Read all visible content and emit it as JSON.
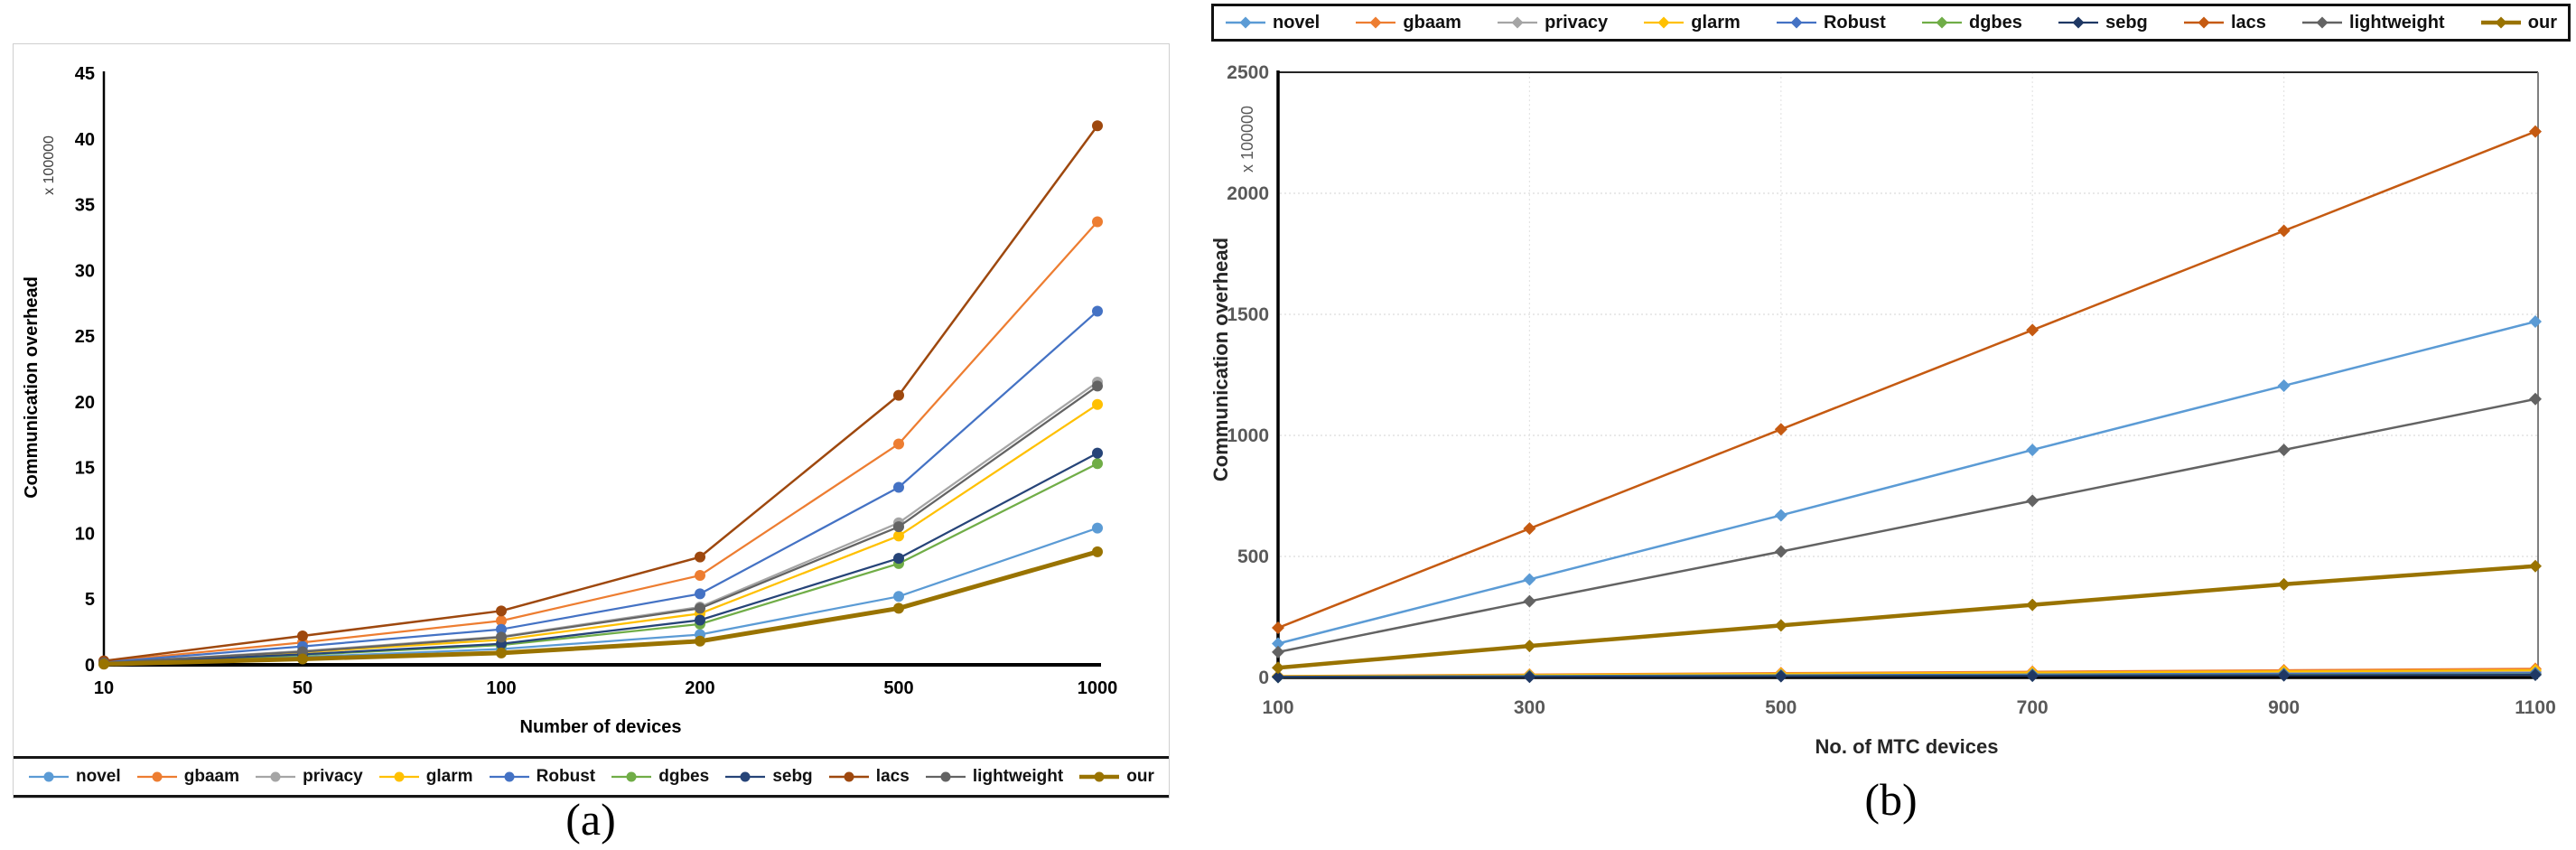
{
  "figure": {
    "caption_a": "(a)",
    "caption_b": "(b)"
  },
  "chart_data": [
    {
      "id": "a",
      "type": "line",
      "caption": "(a)",
      "xlabel": "Number of devices",
      "ylabel": "Communication overhead",
      "y_multiplier": "x 100000",
      "legend_position": "bottom",
      "marker": "circle",
      "grid": false,
      "ylim": [
        0,
        45
      ],
      "yticks": [
        0,
        5,
        10,
        15,
        20,
        25,
        30,
        35,
        40,
        45
      ],
      "categories": [
        "10",
        "50",
        "100",
        "200",
        "500",
        "1000"
      ],
      "series": [
        {
          "name": "novel",
          "color": "#5B9BD5",
          "width": 2.25,
          "values": [
            0.1,
            0.6,
            1.2,
            2.3,
            5.2,
            10.4
          ]
        },
        {
          "name": "gbaam",
          "color": "#ED7D31",
          "width": 2.25,
          "values": [
            0.25,
            1.7,
            3.35,
            6.8,
            16.8,
            33.7
          ]
        },
        {
          "name": "privacy",
          "color": "#A5A5A5",
          "width": 2.25,
          "values": [
            0.15,
            1.05,
            2.15,
            4.4,
            10.8,
            21.5
          ]
        },
        {
          "name": "glarm",
          "color": "#FFC000",
          "width": 2.25,
          "values": [
            0.15,
            0.95,
            1.9,
            3.9,
            9.8,
            19.8
          ]
        },
        {
          "name": "Robust",
          "color": "#4472C4",
          "width": 2.25,
          "values": [
            0.2,
            1.4,
            2.7,
            5.4,
            13.5,
            26.9
          ]
        },
        {
          "name": "dgbes",
          "color": "#70AD47",
          "width": 2.25,
          "values": [
            0.1,
            0.75,
            1.5,
            3.1,
            7.7,
            15.3
          ]
        },
        {
          "name": "sebg",
          "color": "#264478",
          "width": 2.25,
          "values": [
            0.12,
            0.8,
            1.6,
            3.4,
            8.1,
            16.1
          ]
        },
        {
          "name": "lacs",
          "color": "#9E480E",
          "width": 2.5,
          "values": [
            0.3,
            2.2,
            4.1,
            8.2,
            20.5,
            41.0
          ]
        },
        {
          "name": "lightweight",
          "color": "#636363",
          "width": 2.25,
          "values": [
            0.15,
            1.0,
            2.1,
            4.3,
            10.5,
            21.2
          ]
        },
        {
          "name": "our",
          "color": "#997300",
          "width": 5,
          "values": [
            0.05,
            0.45,
            0.9,
            1.8,
            4.3,
            8.6
          ]
        }
      ]
    },
    {
      "id": "b",
      "type": "line",
      "caption": "(b)",
      "xlabel": "No. of MTC devices",
      "ylabel": "Communication overhead",
      "y_multiplier": "x 100000",
      "legend_position": "top",
      "marker": "diamond",
      "grid": true,
      "ylim": [
        0,
        2500
      ],
      "yticks": [
        0,
        500,
        1000,
        1500,
        2000,
        2500
      ],
      "categories": [
        "100",
        "300",
        "500",
        "700",
        "900",
        "1100"
      ],
      "series": [
        {
          "name": "novel",
          "color": "#5B9BD5",
          "width": 2.5,
          "values": [
            140,
            405,
            670,
            940,
            1205,
            1470
          ]
        },
        {
          "name": "gbaam",
          "color": "#ED7D31",
          "width": 2.25,
          "values": [
            6,
            12,
            18,
            24,
            30,
            36
          ]
        },
        {
          "name": "privacy",
          "color": "#A5A5A5",
          "width": 2.25,
          "values": [
            4,
            8,
            12,
            16,
            20,
            24
          ]
        },
        {
          "name": "glarm",
          "color": "#FFC000",
          "width": 2.25,
          "values": [
            5,
            10,
            15,
            20,
            25,
            30
          ]
        },
        {
          "name": "Robust",
          "color": "#4472C4",
          "width": 2.25,
          "values": [
            3,
            6,
            9,
            12,
            15,
            18
          ]
        },
        {
          "name": "dgbes",
          "color": "#70AD47",
          "width": 2.25,
          "values": [
            2,
            4,
            6,
            8,
            10,
            12
          ]
        },
        {
          "name": "sebg",
          "color": "#1F3864",
          "width": 2.25,
          "values": [
            2,
            3,
            5,
            7,
            9,
            11
          ]
        },
        {
          "name": "lacs",
          "color": "#C55A11",
          "width": 2.5,
          "values": [
            205,
            615,
            1025,
            1435,
            1845,
            2255
          ]
        },
        {
          "name": "lightweight",
          "color": "#636363",
          "width": 2.5,
          "values": [
            105,
            315,
            520,
            730,
            940,
            1150
          ]
        },
        {
          "name": "our",
          "color": "#997300",
          "width": 4.5,
          "values": [
            40,
            130,
            215,
            300,
            385,
            460
          ]
        }
      ]
    }
  ]
}
